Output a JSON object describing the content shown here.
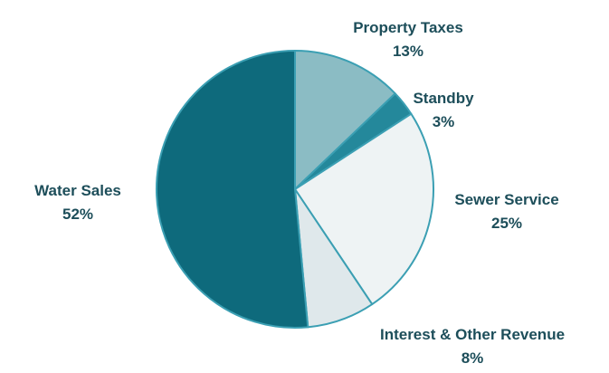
{
  "chart_data": {
    "type": "pie",
    "title": "",
    "slices": [
      {
        "label": "Property Taxes",
        "value": 13,
        "value_label": "13%",
        "color": "#8bbcc4"
      },
      {
        "label": "Standby",
        "value": 3,
        "value_label": "3%",
        "color": "#24889b"
      },
      {
        "label": "Sewer Service",
        "value": 25,
        "value_label": "25%",
        "color": "#eef3f4"
      },
      {
        "label": "Interest & Other Revenue",
        "value": 8,
        "value_label": "8%",
        "color": "#dfe8eb"
      },
      {
        "label": "Water Sales",
        "value": 52,
        "value_label": "52%",
        "color": "#0e6a7c"
      }
    ],
    "outline_color": "#3b9fb3",
    "legend": "none"
  }
}
